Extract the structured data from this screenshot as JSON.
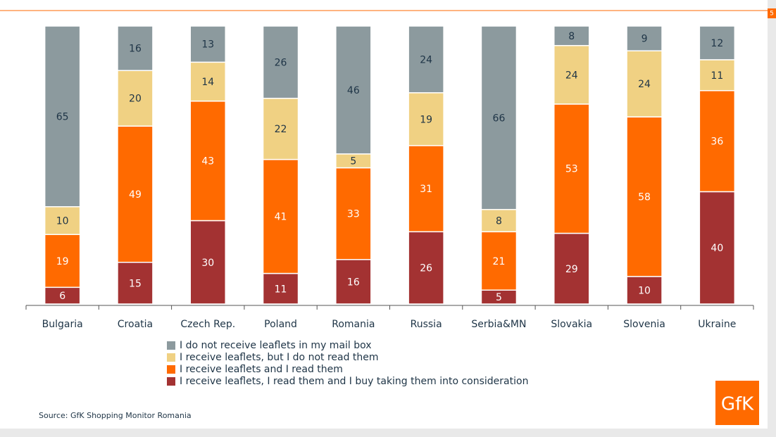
{
  "page_number": "5",
  "source": "Source: GfK Shopping Monitor Romania",
  "logo": "GfK",
  "chart_data": {
    "type": "bar",
    "stack": "percent",
    "categories": [
      "Bulgaria",
      "Croatia",
      "Czech Rep.",
      "Poland",
      "Romania",
      "Russia",
      "Serbia&MN",
      "Slovakia",
      "Slovenia",
      "Ukraine"
    ],
    "series": [
      {
        "name": "I do not receive leaflets in my mail box",
        "color": "#8c9a9e",
        "label_color": "#1e3446",
        "values": [
          65,
          16,
          13,
          26,
          46,
          24,
          66,
          8,
          9,
          12
        ]
      },
      {
        "name": "I receive leaflets, but I do not read them",
        "color": "#f0d183",
        "label_color": "#1e3446",
        "values": [
          10,
          20,
          14,
          22,
          5,
          19,
          8,
          24,
          24,
          11
        ]
      },
      {
        "name": "I receive leaflets and I read them",
        "color": "#ff6a00",
        "label_color": "#ffffff",
        "values": [
          19,
          49,
          43,
          41,
          33,
          31,
          21,
          53,
          58,
          36
        ]
      },
      {
        "name": "I receive leaflets, I read them and I buy taking them into consideration",
        "color": "#a33232",
        "label_color": "#ffffff",
        "values": [
          6,
          15,
          30,
          11,
          16,
          26,
          5,
          29,
          10,
          40
        ]
      }
    ]
  }
}
